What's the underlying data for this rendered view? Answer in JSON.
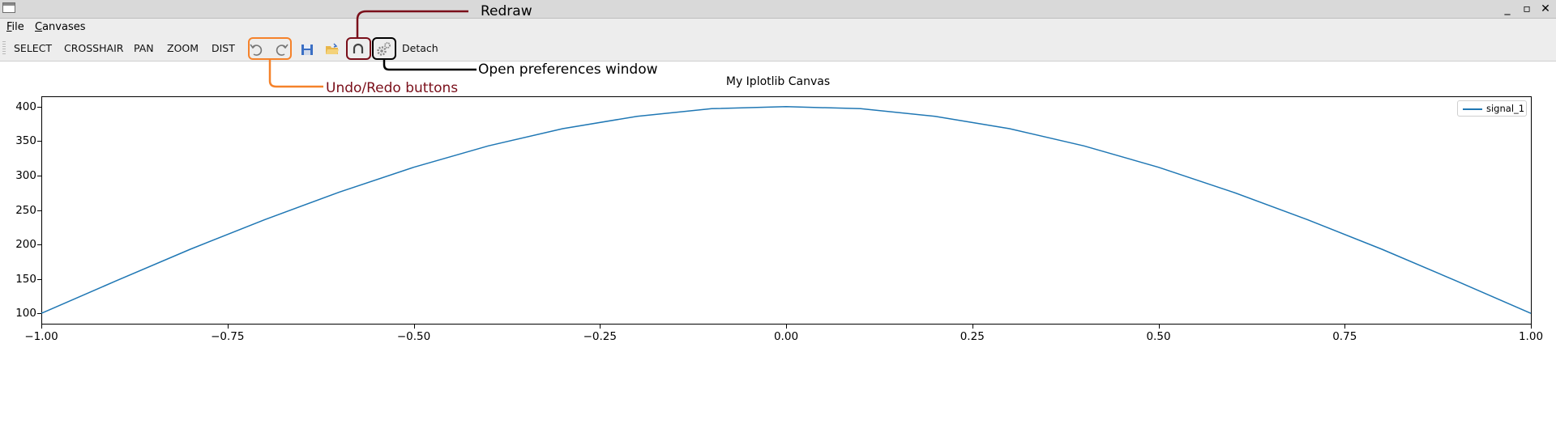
{
  "window": {
    "title": "",
    "controls": [
      "_",
      "▫",
      "✕"
    ]
  },
  "menubar": {
    "items": [
      {
        "label": "File",
        "underline": "F"
      },
      {
        "label": "Canvases",
        "underline": "C"
      }
    ]
  },
  "toolbar": {
    "modes": [
      "SELECT",
      "CROSSHAIR",
      "PAN",
      "ZOOM",
      "DIST"
    ],
    "icons": [
      "undo-icon",
      "redo-icon",
      "save-icon",
      "open-folder-icon",
      "redraw-icon",
      "gear-icon"
    ],
    "detach_label": "Detach"
  },
  "annotations": {
    "redraw": "Redraw",
    "preferences": "Open preferences window",
    "undo_redo": "Undo/Redo buttons",
    "colors": {
      "undo_redo": "#f5822a",
      "redraw": "#7a0f1a",
      "preferences": "#000000"
    }
  },
  "chart_data": {
    "type": "line",
    "title": "My Iplotlib Canvas",
    "xlim": [
      -1.0,
      1.0
    ],
    "ylim": [
      85,
      415
    ],
    "x_ticks": [
      "−1.00",
      "−0.75",
      "−0.50",
      "−0.25",
      "0.00",
      "0.25",
      "0.50",
      "0.75",
      "1.00"
    ],
    "x_tick_values": [
      -1.0,
      -0.75,
      -0.5,
      -0.25,
      0.0,
      0.25,
      0.5,
      0.75,
      1.0
    ],
    "y_ticks": [
      "100",
      "150",
      "200",
      "250",
      "300",
      "350",
      "400"
    ],
    "y_tick_values": [
      100,
      150,
      200,
      250,
      300,
      350,
      400
    ],
    "legend": "top-right",
    "color": "#1f77b4",
    "series": [
      {
        "name": "signal_1",
        "x": [
          -1.0,
          -0.9,
          -0.8,
          -0.7,
          -0.6,
          -0.5,
          -0.4,
          -0.3,
          -0.2,
          -0.1,
          0.0,
          0.1,
          0.2,
          0.3,
          0.4,
          0.5,
          0.6,
          0.7,
          0.8,
          0.9,
          1.0
        ],
        "y": [
          100,
          147,
          193,
          236,
          276,
          312,
          343,
          368,
          386,
          397,
          400,
          397,
          386,
          368,
          343,
          312,
          276,
          236,
          193,
          147,
          100
        ]
      }
    ]
  }
}
